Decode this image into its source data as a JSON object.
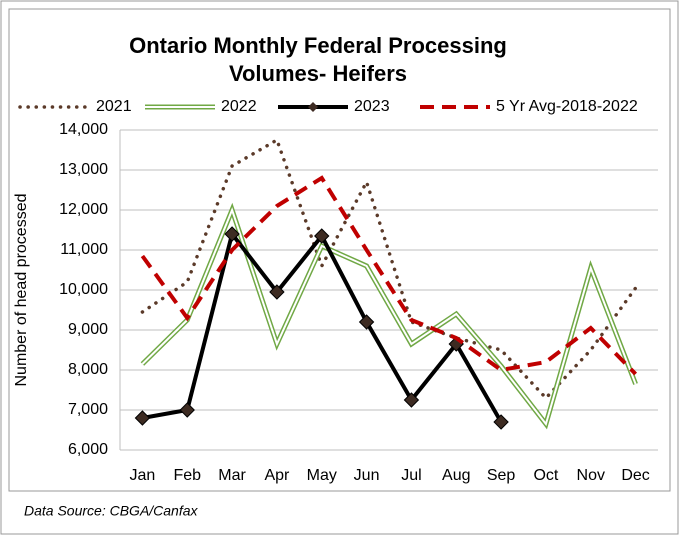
{
  "chart_data": {
    "type": "line",
    "title": "Ontario Monthly Federal Processing Volumes- Heifers",
    "title_lines": [
      "Ontario Monthly Federal Processing",
      "Volumes- Heifers"
    ],
    "y_label": "Number of head processed",
    "source": "Data Source: CBGA/Canfax",
    "categories": [
      "Jan",
      "Feb",
      "Mar",
      "Apr",
      "May",
      "Jun",
      "Jul",
      "Aug",
      "Sep",
      "Oct",
      "Nov",
      "Dec"
    ],
    "series": [
      {
        "name": "2021",
        "color": "#5b3a29",
        "style": "dotted",
        "values": [
          9450,
          10200,
          13100,
          13750,
          10600,
          12700,
          9200,
          8800,
          8500,
          7300,
          8500,
          10050
        ]
      },
      {
        "name": "2022",
        "color": "#70a845",
        "style": "double",
        "values": [
          8150,
          9250,
          12000,
          8650,
          11100,
          10600,
          8650,
          9400,
          8100,
          6650,
          10550,
          7650
        ]
      },
      {
        "name": "2023",
        "color": "#000000",
        "style": "solid-diamond",
        "values": [
          6800,
          7000,
          11400,
          9950,
          11350,
          9200,
          7250,
          8650,
          6700,
          null,
          null,
          null
        ]
      },
      {
        "name": "5 Yr Avg-2018-2022",
        "color": "#c00000",
        "style": "dashed",
        "values": [
          10850,
          9300,
          11000,
          12100,
          12800,
          11000,
          9250,
          8800,
          8000,
          8200,
          9050,
          7900
        ]
      }
    ],
    "ylim": [
      6000,
      14000
    ],
    "yticks": [
      {
        "value": 6000,
        "label": "6,000"
      },
      {
        "value": 7000,
        "label": "7,000"
      },
      {
        "value": 8000,
        "label": "8,000"
      },
      {
        "value": 9000,
        "label": "9,000"
      },
      {
        "value": 10000,
        "label": "10,000"
      },
      {
        "value": 11000,
        "label": "11,000"
      },
      {
        "value": 12000,
        "label": "12,000"
      },
      {
        "value": 13000,
        "label": "13,000"
      },
      {
        "value": 14000,
        "label": "14,000"
      }
    ],
    "grid": true,
    "legend": "top"
  }
}
